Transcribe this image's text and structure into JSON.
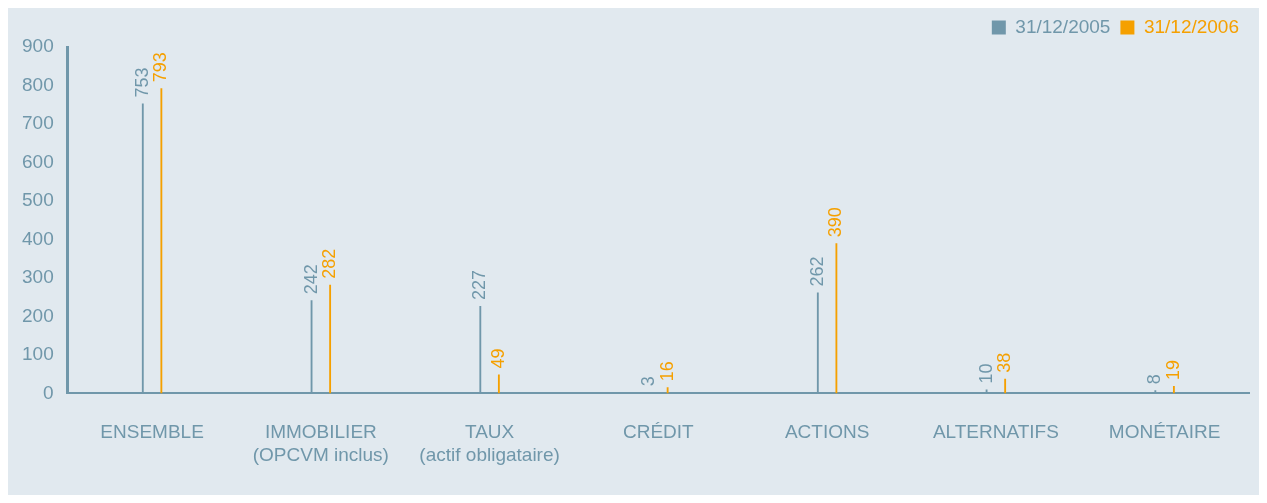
{
  "chart_data": {
    "type": "bar",
    "categories": [
      "ENSEMBLE",
      "IMMOBILIER\n(OPCVM inclus)",
      "TAUX\n(actif obligataire)",
      "CRÉDIT",
      "ACTIONS",
      "ALTERNATIFS",
      "MONÉTAIRE"
    ],
    "series": [
      {
        "name": "31/12/2005",
        "color": "#7097aa",
        "values": [
          753,
          242,
          227,
          3,
          262,
          10,
          8
        ]
      },
      {
        "name": "31/12/2006",
        "color": "#f5a000",
        "values": [
          793,
          282,
          49,
          16,
          390,
          38,
          19
        ]
      }
    ],
    "ylim": [
      0,
      900
    ],
    "yticks": [
      0,
      100,
      200,
      300,
      400,
      500,
      600,
      700,
      800,
      900
    ],
    "grid": false,
    "legend": "top right",
    "data_labels": true
  }
}
